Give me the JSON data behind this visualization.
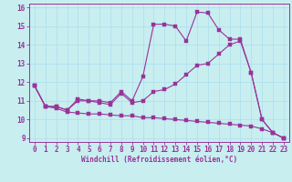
{
  "bg_color": "#c8eef0",
  "line_color": "#993399",
  "grid_color": "#aaddee",
  "xlim": [
    -0.5,
    23.5
  ],
  "ylim": [
    8.8,
    16.2
  ],
  "xticks": [
    0,
    1,
    2,
    3,
    4,
    5,
    6,
    7,
    8,
    9,
    10,
    11,
    12,
    13,
    14,
    15,
    16,
    17,
    18,
    19,
    20,
    21,
    22,
    23
  ],
  "yticks": [
    9,
    10,
    11,
    12,
    13,
    14,
    15,
    16
  ],
  "xlabel": "Windchill (Refroidissement éolien,°C)",
  "line1_x": [
    0,
    1,
    2,
    3,
    4,
    5,
    6,
    7,
    8,
    9,
    10,
    11,
    12,
    13,
    14,
    15,
    16,
    17,
    18,
    19,
    20,
    21,
    22,
    23
  ],
  "line1_y": [
    11.8,
    10.7,
    10.7,
    10.5,
    11.1,
    11.0,
    11.0,
    10.9,
    11.5,
    11.0,
    12.3,
    15.1,
    15.1,
    15.0,
    14.2,
    15.75,
    15.7,
    14.8,
    14.3,
    14.3,
    12.5,
    10.0,
    9.3,
    9.0
  ],
  "line2_x": [
    0,
    1,
    2,
    3,
    4,
    5,
    6,
    7,
    8,
    9,
    10,
    11,
    12,
    13,
    14,
    15,
    16,
    17,
    18,
    19,
    20,
    21,
    22,
    23
  ],
  "line2_y": [
    11.8,
    10.7,
    10.7,
    10.5,
    11.0,
    11.0,
    10.9,
    10.8,
    11.4,
    10.9,
    11.0,
    11.5,
    11.6,
    11.9,
    12.4,
    12.9,
    13.0,
    13.5,
    14.0,
    14.2,
    12.5,
    10.0,
    9.3,
    9.0
  ],
  "line3_x": [
    0,
    1,
    2,
    3,
    4,
    5,
    6,
    7,
    8,
    9,
    10,
    11,
    12,
    13,
    14,
    15,
    16,
    17,
    18,
    19,
    20,
    21,
    22,
    23
  ],
  "line3_y": [
    11.8,
    10.7,
    10.6,
    10.4,
    10.35,
    10.3,
    10.3,
    10.25,
    10.2,
    10.2,
    10.1,
    10.1,
    10.05,
    10.0,
    9.95,
    9.9,
    9.85,
    9.8,
    9.75,
    9.7,
    9.65,
    9.5,
    9.3,
    9.0
  ],
  "tick_fontsize": 5.5,
  "xlabel_fontsize": 5.5
}
